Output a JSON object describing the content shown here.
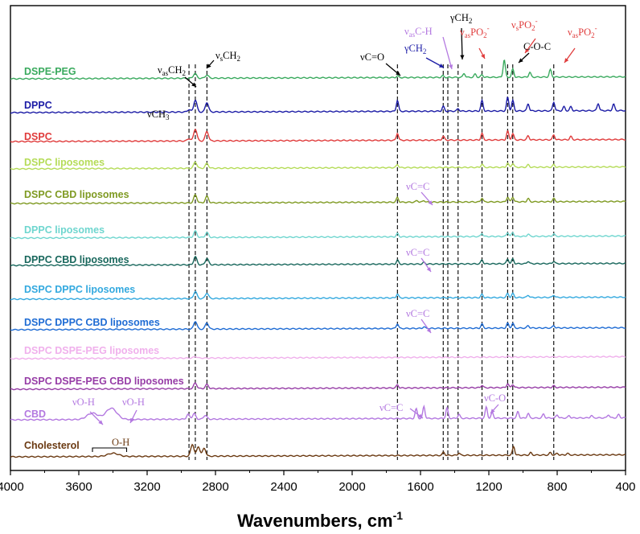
{
  "chart_data": {
    "type": "line",
    "title": "",
    "xlabel": "Wavenumbers, cm",
    "xlabel_superscript": "-1",
    "ylabel": "",
    "xlim": [
      4000,
      400
    ],
    "x_ticks": [
      4000,
      3600,
      3200,
      2800,
      2400,
      2000,
      1600,
      1200,
      800,
      400
    ],
    "y_ticks": [],
    "grid": false,
    "legend": "inline labels at left of each trace",
    "series": [
      {
        "name": "DSPE-PEG",
        "color": "#3aaa5e",
        "peaks": [
          [
            2920,
            6
          ],
          [
            2850,
            4
          ],
          [
            1735,
            2
          ],
          [
            1470,
            2
          ],
          [
            1345,
            5
          ],
          [
            1280,
            4
          ],
          [
            1240,
            3
          ],
          [
            1110,
            22
          ],
          [
            1060,
            10
          ],
          [
            960,
            6
          ],
          [
            840,
            9
          ]
        ]
      },
      {
        "name": "DPPC",
        "color": "#1c1ca6",
        "peaks": [
          [
            2955,
            3
          ],
          [
            2918,
            15
          ],
          [
            2850,
            12
          ],
          [
            1735,
            14
          ],
          [
            1467,
            6
          ],
          [
            1380,
            3
          ],
          [
            1240,
            13
          ],
          [
            1090,
            17
          ],
          [
            1060,
            13
          ],
          [
            970,
            9
          ],
          [
            820,
            11
          ],
          [
            760,
            5
          ],
          [
            720,
            5
          ],
          [
            560,
            9
          ],
          [
            470,
            8
          ]
        ]
      },
      {
        "name": "DSPC",
        "color": "#e03c3c",
        "peaks": [
          [
            2955,
            3
          ],
          [
            2918,
            15
          ],
          [
            2850,
            12
          ],
          [
            1735,
            9
          ],
          [
            1467,
            5
          ],
          [
            1240,
            8
          ],
          [
            1090,
            11
          ],
          [
            1060,
            8
          ],
          [
            970,
            5
          ],
          [
            820,
            6
          ],
          [
            720,
            4
          ]
        ]
      },
      {
        "name": "DSPC liposomes",
        "color": "#b5dc58",
        "peaks": [
          [
            2918,
            8
          ],
          [
            2850,
            6
          ],
          [
            1735,
            4
          ],
          [
            1240,
            4
          ],
          [
            1090,
            5
          ],
          [
            1060,
            5
          ],
          [
            970,
            3
          ],
          [
            820,
            3
          ]
        ]
      },
      {
        "name": "DSPC CBD liposomes",
        "color": "#7f9a22",
        "peaks": [
          [
            2918,
            10
          ],
          [
            2850,
            8
          ],
          [
            1735,
            6
          ],
          [
            1620,
            2
          ],
          [
            1580,
            2
          ],
          [
            1240,
            5
          ],
          [
            1090,
            6
          ],
          [
            1060,
            6
          ],
          [
            970,
            4
          ],
          [
            820,
            4
          ]
        ]
      },
      {
        "name": "DPPC liposomes",
        "color": "#6fd6cf",
        "peaks": [
          [
            2918,
            8
          ],
          [
            2850,
            6
          ],
          [
            1735,
            4
          ],
          [
            1240,
            4
          ],
          [
            1090,
            5
          ],
          [
            1060,
            5
          ],
          [
            970,
            3
          ],
          [
            820,
            3
          ]
        ]
      },
      {
        "name": "DPPC CBD liposomes",
        "color": "#18675c",
        "peaks": [
          [
            2918,
            10
          ],
          [
            2850,
            8
          ],
          [
            1735,
            5
          ],
          [
            1580,
            2
          ],
          [
            1240,
            5
          ],
          [
            1090,
            6
          ],
          [
            1060,
            6
          ],
          [
            970,
            3
          ],
          [
            820,
            3
          ]
        ]
      },
      {
        "name": "DSPC DPPC liposomes",
        "color": "#33a9df",
        "peaks": [
          [
            2918,
            9
          ],
          [
            2850,
            7
          ],
          [
            1735,
            5
          ],
          [
            1240,
            4
          ],
          [
            1090,
            5
          ],
          [
            1060,
            5
          ],
          [
            970,
            3
          ],
          [
            820,
            3
          ]
        ]
      },
      {
        "name": "DSPC DPPC CBD liposomes",
        "color": "#1f6cd4",
        "peaks": [
          [
            2918,
            10
          ],
          [
            2850,
            8
          ],
          [
            1735,
            6
          ],
          [
            1580,
            2
          ],
          [
            1240,
            5
          ],
          [
            1090,
            6
          ],
          [
            1060,
            6
          ],
          [
            970,
            3
          ],
          [
            820,
            3
          ]
        ]
      },
      {
        "name": "DSPC DSPE-PEG liposomes",
        "color": "#f0b0ec",
        "peaks": [
          [
            2918,
            2
          ],
          [
            1090,
            1
          ]
        ]
      },
      {
        "name": "DSPC DSPE-PEG CBD liposomes",
        "color": "#963ca6",
        "peaks": [
          [
            2918,
            7
          ],
          [
            2850,
            5
          ],
          [
            1735,
            4
          ],
          [
            1240,
            3
          ],
          [
            1090,
            5
          ],
          [
            1060,
            4
          ],
          [
            820,
            2
          ]
        ]
      },
      {
        "name": "CBD",
        "color": "#b378e0",
        "peaks": [
          [
            3520,
            8
          ],
          [
            3410,
            14
          ],
          [
            2960,
            6
          ],
          [
            2925,
            7
          ],
          [
            2860,
            5
          ],
          [
            1625,
            12
          ],
          [
            1580,
            15
          ],
          [
            1445,
            13
          ],
          [
            1375,
            5
          ],
          [
            1215,
            14
          ],
          [
            1180,
            7
          ],
          [
            1030,
            8
          ],
          [
            970,
            6
          ],
          [
            880,
            5
          ],
          [
            800,
            4
          ],
          [
            730,
            3
          ],
          [
            600,
            3
          ],
          [
            500,
            4
          ],
          [
            440,
            4
          ]
        ]
      },
      {
        "name": "Cholesterol",
        "color": "#6b3a12",
        "peaks": [
          [
            3400,
            4
          ],
          [
            2935,
            15
          ],
          [
            2900,
            12
          ],
          [
            2866,
            10
          ],
          [
            1465,
            4
          ],
          [
            1375,
            3
          ],
          [
            1055,
            11
          ],
          [
            955,
            3
          ],
          [
            840,
            3
          ],
          [
            800,
            2
          ],
          [
            740,
            2
          ]
        ]
      }
    ],
    "reference_lines": [
      2955,
      2918,
      2850,
      1735,
      1467,
      1440,
      1380,
      1240,
      1090,
      1060,
      820
    ],
    "annotations": [
      {
        "text": "ν",
        "sub": "as",
        "rest": "CH",
        "sub2": "2",
        "color": "#000000",
        "x": 2955
      },
      {
        "text": "νCH",
        "sub": "",
        "rest": "",
        "sub2": "3",
        "color": "#000000",
        "x": 3000
      },
      {
        "text": "ν",
        "sub": "s",
        "rest": "CH",
        "sub2": "2",
        "color": "#000000",
        "x": 2800
      },
      {
        "text": "νC=O",
        "sub": "",
        "rest": "",
        "sub2": "",
        "color": "#000000",
        "x": 1755
      },
      {
        "text": "γCH",
        "sub": "",
        "rest": "",
        "sub2": "2",
        "color": "#1c1ca6",
        "x": 1530
      },
      {
        "text": "ν",
        "sub": "as",
        "rest": "C-H",
        "sub2": "",
        "color": "#b378e0",
        "x": 1520
      },
      {
        "text": "γCH",
        "sub": "",
        "rest": "",
        "sub2": "2",
        "color": "#000000",
        "x": 1420
      },
      {
        "text": "ν",
        "sub": "as",
        "rest": "PO",
        "sub2": "2",
        "sup": "-",
        "color": "#e03c3c",
        "x": 1300
      },
      {
        "text": "ν",
        "sub": "s",
        "rest": "PO",
        "sub2": "2",
        "sup": "-",
        "color": "#e03c3c",
        "x": 1090
      },
      {
        "text": "C-O-C",
        "sub": "",
        "rest": "",
        "sub2": "",
        "color": "#000000",
        "x": 1010
      },
      {
        "text": "ν",
        "sub": "as",
        "rest": "PO",
        "sub2": "2",
        "sup": "-",
        "color": "#e03c3c",
        "x": 790
      },
      {
        "text": "νC=C",
        "sub": "",
        "rest": "",
        "sub2": "",
        "color": "#b378e0",
        "x": 1590
      },
      {
        "text": "νC=C",
        "sub": "",
        "rest": "",
        "sub2": "",
        "color": "#b378e0",
        "x": 1590
      },
      {
        "text": "νC=C",
        "sub": "",
        "rest": "",
        "sub2": "",
        "color": "#b378e0",
        "x": 1590
      },
      {
        "text": "νC=C",
        "sub": "",
        "rest": "",
        "sub2": "",
        "color": "#b378e0",
        "x": 1650
      },
      {
        "text": "νC-O",
        "sub": "",
        "rest": "",
        "sub2": "",
        "color": "#b378e0",
        "x": 1160
      },
      {
        "text": "νO-H",
        "sub": "",
        "rest": "",
        "sub2": "",
        "color": "#b378e0",
        "x": 3600
      },
      {
        "text": "νO-H",
        "sub": "",
        "rest": "",
        "sub2": "",
        "color": "#b378e0",
        "x": 3320
      },
      {
        "text": "O-H",
        "sub": "",
        "rest": "",
        "sub2": "",
        "color": "#6b3a12",
        "x": 3420
      }
    ]
  }
}
